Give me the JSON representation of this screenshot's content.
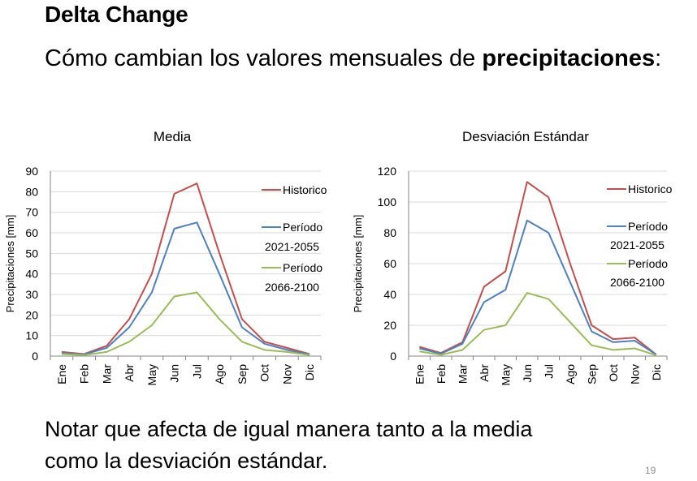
{
  "slide": {
    "title": "Delta Change",
    "subtitle_prefix": "Cómo cambian los valores mensuales de ",
    "subtitle_bold": "precipitaciones",
    "subtitle_suffix": ":",
    "note_line1": "Notar que afecta de igual manera tanto a la media",
    "note_line2": "como la desviación estándar.",
    "page_number": "19"
  },
  "colors": {
    "historico": "#c0504d",
    "periodo_2021_2055": "#4f81bd",
    "periodo_2066_2100": "#9bbb59",
    "gridline": "#d9d9d9",
    "axis": "#868686"
  },
  "chart_data": [
    {
      "type": "line",
      "title": "Media",
      "xlabel": "",
      "ylabel": "Precipitaciones [mm]",
      "categories": [
        "Ene",
        "Feb",
        "Mar",
        "Abr",
        "May",
        "Jun",
        "Jul",
        "Ago",
        "Sep",
        "Oct",
        "Nov",
        "Dic"
      ],
      "ylim": [
        0,
        90
      ],
      "yticks": [
        0,
        10,
        20,
        30,
        40,
        50,
        60,
        70,
        80,
        90
      ],
      "grid": true,
      "legend_position": "right",
      "series": [
        {
          "name": "Historico",
          "color_key": "historico",
          "values": [
            2,
            1,
            5,
            18,
            40,
            79,
            84,
            50,
            18,
            7,
            4,
            1
          ]
        },
        {
          "name": "Período 2021-2055",
          "color_key": "periodo_2021_2055",
          "values": [
            1.5,
            0.8,
            4,
            14,
            31,
            62,
            65,
            40,
            14,
            6,
            3,
            0.8
          ]
        },
        {
          "name": "Período 2066-2100",
          "color_key": "periodo_2066_2100",
          "values": [
            1,
            0.5,
            2,
            7,
            15,
            29,
            31,
            18,
            7,
            3,
            2,
            0.5
          ]
        }
      ]
    },
    {
      "type": "line",
      "title": "Desviación Estándar",
      "xlabel": "",
      "ylabel": "Precipitaciones [mm]",
      "categories": [
        "Ene",
        "Feb",
        "Mar",
        "Abr",
        "May",
        "Jun",
        "Jul",
        "Ago",
        "Sep",
        "Oct",
        "Nov",
        "Dic"
      ],
      "ylim": [
        0,
        120
      ],
      "yticks": [
        0,
        20,
        40,
        60,
        80,
        100,
        120
      ],
      "grid": true,
      "legend_position": "right",
      "series": [
        {
          "name": "Historico",
          "color_key": "historico",
          "values": [
            6,
            2,
            9,
            45,
            55,
            113,
            103,
            60,
            20,
            11,
            12,
            1
          ]
        },
        {
          "name": "Período 2021-2055",
          "color_key": "periodo_2021_2055",
          "values": [
            5,
            1.5,
            8,
            35,
            43,
            88,
            80,
            48,
            16,
            9,
            10,
            1
          ]
        },
        {
          "name": "Período 2066-2100",
          "color_key": "periodo_2066_2100",
          "values": [
            3,
            0.8,
            4,
            17,
            20,
            41,
            37,
            22,
            7,
            4,
            5,
            0.5
          ]
        }
      ]
    }
  ]
}
